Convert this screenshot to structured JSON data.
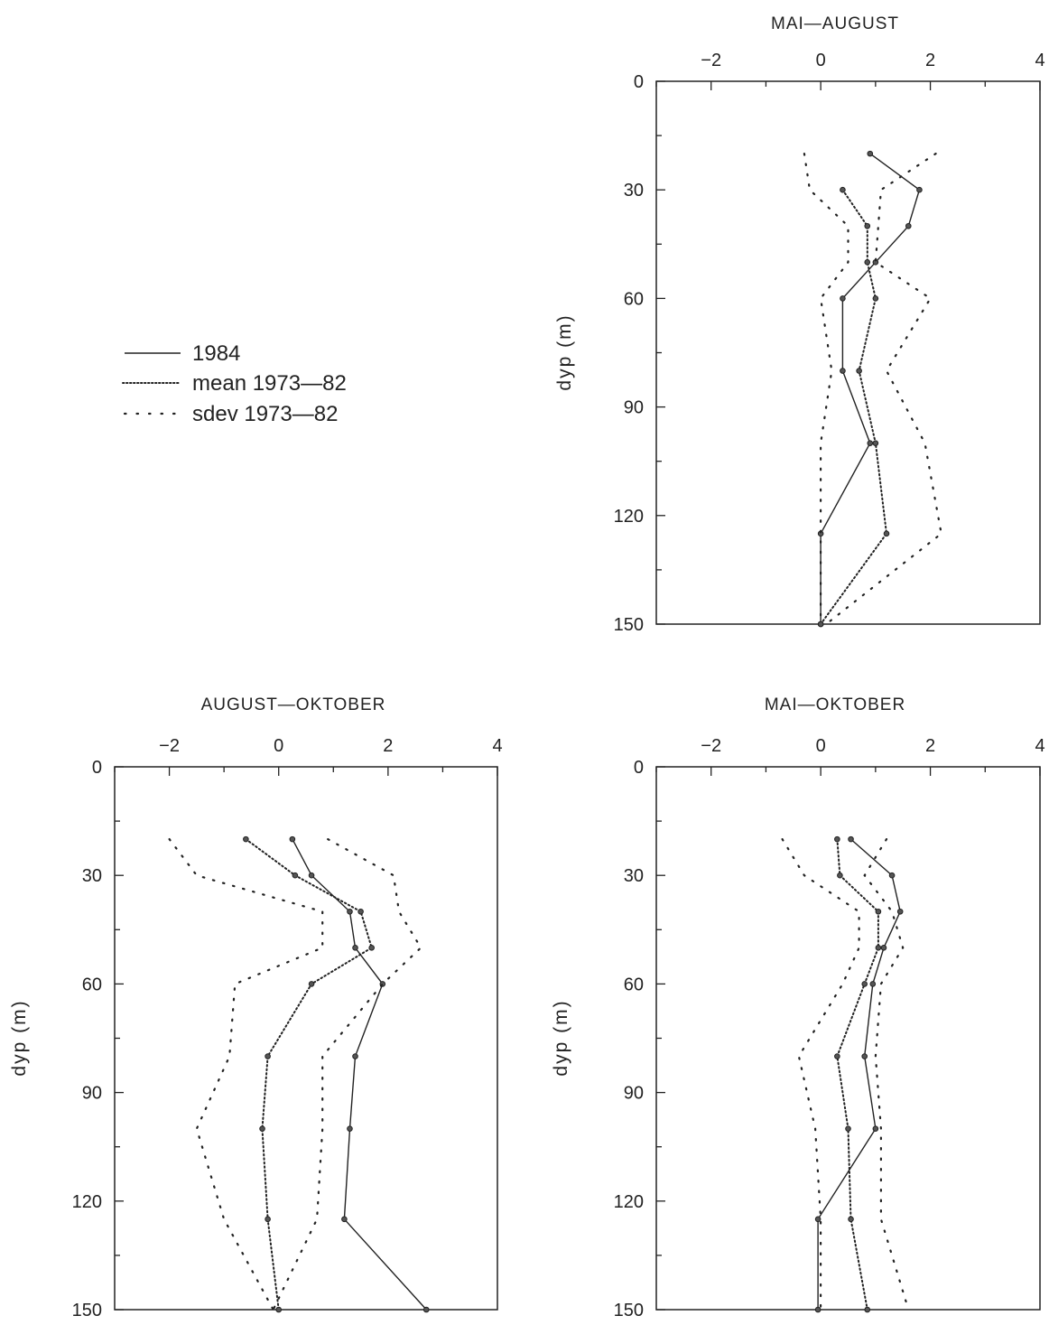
{
  "legend": [
    {
      "label": "1984",
      "style": "solid"
    },
    {
      "label": "mean 1973—82",
      "style": "dense-dot"
    },
    {
      "label": "sdev 1973—82",
      "style": "sparse-dot"
    }
  ],
  "colors": {
    "line": "#222222",
    "background": "#ffffff"
  },
  "chart_data": [
    {
      "type": "line",
      "title": "MAI—AUGUST",
      "xlabel": "",
      "ylabel": "dyp (m)",
      "xlim": [
        -3,
        4
      ],
      "ylim": [
        0,
        150
      ],
      "y_inverted": true,
      "x_ticks": [
        -2,
        0,
        2,
        4
      ],
      "y_ticks": [
        0,
        30,
        60,
        90,
        120,
        150
      ],
      "depth": [
        20,
        30,
        40,
        50,
        60,
        80,
        100,
        125,
        150
      ],
      "series": [
        {
          "name": "1984",
          "style": "solid",
          "markers": true,
          "values": [
            0.9,
            1.8,
            1.6,
            1.0,
            0.4,
            0.4,
            0.9,
            0.0,
            0.0
          ]
        },
        {
          "name": "mean 1973—82",
          "style": "dense-dot",
          "markers": true,
          "values": [
            null,
            0.4,
            0.85,
            0.85,
            1.0,
            0.7,
            1.0,
            1.2,
            0.0
          ]
        },
        {
          "name": "sdev 1973—82",
          "style": "sparse-dot",
          "markers": false,
          "values": [
            -0.3,
            -0.2,
            0.5,
            0.5,
            0.0,
            0.2,
            0.0,
            0.0,
            0.0
          ]
        },
        {
          "name": "sdev 1973—82",
          "style": "sparse-dot",
          "markers": false,
          "values": [
            2.1,
            1.1,
            1.05,
            1.0,
            2.0,
            1.2,
            1.9,
            2.2,
            0.1
          ]
        }
      ]
    },
    {
      "type": "line",
      "title": "AUGUST—OKTOBER",
      "xlabel": "",
      "ylabel": "dyp (m)",
      "xlim": [
        -3,
        4
      ],
      "ylim": [
        0,
        150
      ],
      "y_inverted": true,
      "x_ticks": [
        -2,
        0,
        2,
        4
      ],
      "y_ticks": [
        0,
        30,
        60,
        90,
        120,
        150
      ],
      "depth": [
        20,
        30,
        40,
        50,
        60,
        80,
        100,
        125,
        150
      ],
      "series": [
        {
          "name": "1984",
          "style": "solid",
          "markers": true,
          "values": [
            0.25,
            0.6,
            1.3,
            1.4,
            1.9,
            1.4,
            1.3,
            1.2,
            2.7
          ]
        },
        {
          "name": "mean 1973—82",
          "style": "dense-dot",
          "markers": true,
          "values": [
            -0.6,
            0.3,
            1.5,
            1.7,
            0.6,
            -0.2,
            -0.3,
            -0.2,
            0.0
          ]
        },
        {
          "name": "sdev 1973—82",
          "style": "sparse-dot",
          "markers": false,
          "values": [
            -2.0,
            -1.5,
            0.8,
            0.8,
            -0.8,
            -0.9,
            -1.5,
            -1.0,
            -0.1
          ]
        },
        {
          "name": "sdev 1973—82",
          "style": "sparse-dot",
          "markers": false,
          "values": [
            0.9,
            2.1,
            2.2,
            2.6,
            1.9,
            0.8,
            0.8,
            0.7,
            -0.1
          ]
        }
      ]
    },
    {
      "type": "line",
      "title": "MAI—OKTOBER",
      "xlabel": "",
      "ylabel": "dyp (m)",
      "xlim": [
        -3,
        4
      ],
      "ylim": [
        0,
        150
      ],
      "y_inverted": true,
      "x_ticks": [
        -2,
        0,
        2,
        4
      ],
      "y_ticks": [
        0,
        30,
        60,
        90,
        120,
        150
      ],
      "depth": [
        20,
        30,
        40,
        50,
        60,
        80,
        100,
        125,
        150
      ],
      "series": [
        {
          "name": "1984",
          "style": "solid",
          "markers": true,
          "values": [
            0.55,
            1.3,
            1.45,
            1.15,
            0.95,
            0.8,
            1.0,
            -0.05,
            -0.05
          ]
        },
        {
          "name": "mean 1973—82",
          "style": "dense-dot",
          "markers": true,
          "values": [
            0.3,
            0.35,
            1.05,
            1.05,
            0.8,
            0.3,
            0.5,
            0.55,
            0.85
          ]
        },
        {
          "name": "sdev 1973—82",
          "style": "sparse-dot",
          "markers": false,
          "values": [
            -0.7,
            -0.3,
            0.7,
            0.7,
            0.4,
            -0.4,
            -0.1,
            0.0,
            0.0
          ]
        },
        {
          "name": "sdev 1973—82",
          "style": "sparse-dot",
          "markers": false,
          "values": [
            1.2,
            0.8,
            1.3,
            1.5,
            1.1,
            1.0,
            1.1,
            1.1,
            1.6
          ]
        }
      ]
    }
  ]
}
